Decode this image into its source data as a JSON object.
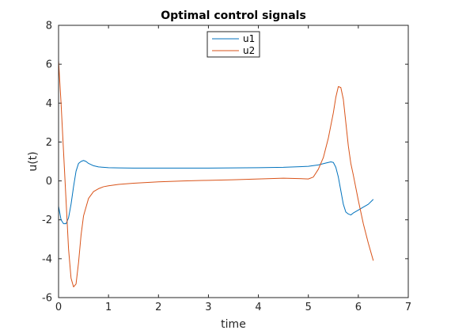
{
  "chart_data": {
    "type": "line",
    "title": "Optimal control signals",
    "xlabel": "time",
    "ylabel": "u(t)",
    "xlim": [
      0,
      7
    ],
    "ylim": [
      -6,
      8
    ],
    "xticks": [
      0,
      1,
      2,
      3,
      4,
      5,
      6,
      7
    ],
    "yticks": [
      -6,
      -4,
      -2,
      0,
      2,
      4,
      6,
      8
    ],
    "grid": false,
    "legend_position": "top-center",
    "series": [
      {
        "name": "u1",
        "color": "#0072BD",
        "x": [
          0,
          0.05,
          0.1,
          0.15,
          0.2,
          0.25,
          0.3,
          0.35,
          0.4,
          0.45,
          0.5,
          0.55,
          0.6,
          0.7,
          0.8,
          0.9,
          1.0,
          1.2,
          1.5,
          2.0,
          2.5,
          3.0,
          3.5,
          4.0,
          4.5,
          5.0,
          5.2,
          5.35,
          5.45,
          5.5,
          5.55,
          5.6,
          5.65,
          5.7,
          5.75,
          5.8,
          5.85,
          5.9,
          6.0,
          6.1,
          6.2,
          6.3
        ],
        "y": [
          -1.3,
          -2.0,
          -2.2,
          -2.2,
          -1.9,
          -1.2,
          -0.3,
          0.5,
          0.9,
          1.0,
          1.05,
          1.0,
          0.9,
          0.78,
          0.72,
          0.7,
          0.68,
          0.67,
          0.66,
          0.66,
          0.66,
          0.66,
          0.67,
          0.68,
          0.7,
          0.75,
          0.82,
          0.92,
          0.98,
          0.95,
          0.7,
          0.2,
          -0.5,
          -1.2,
          -1.6,
          -1.7,
          -1.75,
          -1.65,
          -1.5,
          -1.35,
          -1.2,
          -0.95
        ]
      },
      {
        "name": "u2",
        "color": "#D95319",
        "x": [
          0,
          0.05,
          0.1,
          0.15,
          0.2,
          0.25,
          0.3,
          0.35,
          0.4,
          0.45,
          0.5,
          0.6,
          0.7,
          0.8,
          0.9,
          1.0,
          1.2,
          1.5,
          2.0,
          2.5,
          3.0,
          3.5,
          4.0,
          4.5,
          4.8,
          5.0,
          5.1,
          5.2,
          5.3,
          5.4,
          5.5,
          5.55,
          5.6,
          5.65,
          5.7,
          5.75,
          5.8,
          5.85,
          5.9,
          6.0,
          6.1,
          6.2,
          6.3
        ],
        "y": [
          6.2,
          4.0,
          1.5,
          -1.0,
          -3.5,
          -5.0,
          -5.45,
          -5.3,
          -4.2,
          -2.8,
          -1.8,
          -0.9,
          -0.55,
          -0.4,
          -0.3,
          -0.25,
          -0.18,
          -0.12,
          -0.05,
          0.0,
          0.03,
          0.06,
          0.1,
          0.14,
          0.12,
          0.1,
          0.2,
          0.6,
          1.2,
          2.2,
          3.5,
          4.3,
          4.85,
          4.8,
          4.2,
          3.0,
          1.8,
          0.9,
          0.3,
          -1.0,
          -2.2,
          -3.2,
          -4.1
        ]
      }
    ]
  }
}
